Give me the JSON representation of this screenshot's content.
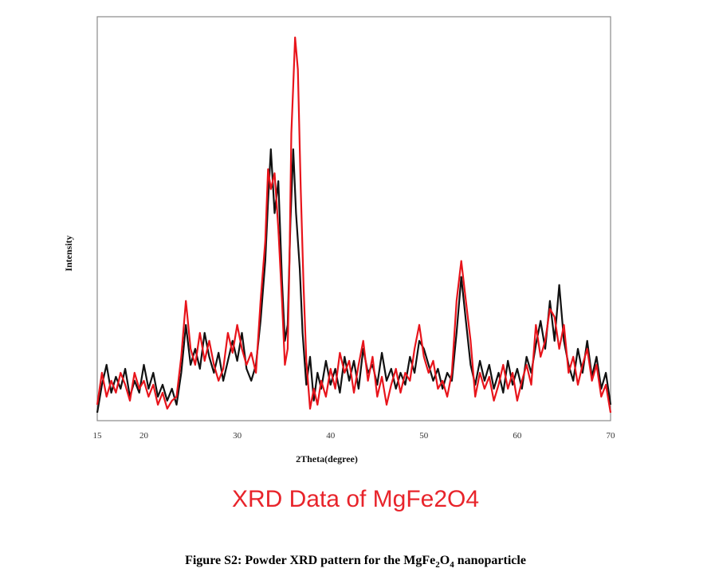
{
  "chart_data": {
    "type": "line",
    "title": "XRD Data of MgFe2O4",
    "xlabel": "2Theta(degree)",
    "ylabel": "Intensity",
    "xlim": [
      15,
      70
    ],
    "ylim": [
      0,
      100
    ],
    "xticks": [
      15,
      20,
      30,
      40,
      50,
      60,
      70
    ],
    "xtick_labels": [
      "15",
      "20",
      "30",
      "40",
      "50",
      "60",
      "70"
    ],
    "grid": false,
    "series": [
      {
        "color": "#111111",
        "points": [
          [
            15,
            2
          ],
          [
            15.5,
            9
          ],
          [
            16,
            14
          ],
          [
            16.5,
            7
          ],
          [
            17,
            11
          ],
          [
            17.5,
            8
          ],
          [
            18,
            13
          ],
          [
            18.5,
            6
          ],
          [
            19,
            10
          ],
          [
            19.5,
            7
          ],
          [
            20,
            14
          ],
          [
            20.5,
            8
          ],
          [
            21,
            12
          ],
          [
            21.5,
            6
          ],
          [
            22,
            9
          ],
          [
            22.5,
            5
          ],
          [
            23,
            8
          ],
          [
            23.5,
            4
          ],
          [
            24,
            12
          ],
          [
            24.5,
            24
          ],
          [
            25,
            14
          ],
          [
            25.5,
            18
          ],
          [
            26,
            13
          ],
          [
            26.5,
            22
          ],
          [
            27,
            16
          ],
          [
            27.5,
            12
          ],
          [
            28,
            17
          ],
          [
            28.5,
            10
          ],
          [
            29,
            15
          ],
          [
            29.5,
            20
          ],
          [
            30,
            15
          ],
          [
            30.5,
            22
          ],
          [
            31,
            13
          ],
          [
            31.5,
            10
          ],
          [
            32,
            14
          ],
          [
            32.5,
            25
          ],
          [
            33,
            40
          ],
          [
            33.3,
            55
          ],
          [
            33.6,
            68
          ],
          [
            34,
            52
          ],
          [
            34.4,
            60
          ],
          [
            34.8,
            35
          ],
          [
            35.1,
            20
          ],
          [
            35.4,
            24
          ],
          [
            35.7,
            50
          ],
          [
            36,
            68
          ],
          [
            36.3,
            52
          ],
          [
            36.7,
            38
          ],
          [
            37,
            22
          ],
          [
            37.4,
            9
          ],
          [
            37.8,
            16
          ],
          [
            38.2,
            5
          ],
          [
            38.6,
            12
          ],
          [
            39,
            8
          ],
          [
            39.5,
            15
          ],
          [
            40,
            9
          ],
          [
            40.5,
            13
          ],
          [
            41,
            7
          ],
          [
            41.5,
            16
          ],
          [
            42,
            10
          ],
          [
            42.5,
            15
          ],
          [
            43,
            8
          ],
          [
            43.5,
            18
          ],
          [
            44,
            12
          ],
          [
            44.5,
            14
          ],
          [
            45,
            9
          ],
          [
            45.5,
            17
          ],
          [
            46,
            10
          ],
          [
            46.5,
            13
          ],
          [
            47,
            8
          ],
          [
            47.5,
            12
          ],
          [
            48,
            9
          ],
          [
            48.5,
            16
          ],
          [
            49,
            12
          ],
          [
            49.5,
            20
          ],
          [
            50,
            18
          ],
          [
            50.5,
            14
          ],
          [
            51,
            10
          ],
          [
            51.5,
            13
          ],
          [
            52,
            8
          ],
          [
            52.5,
            12
          ],
          [
            53,
            10
          ],
          [
            53.5,
            22
          ],
          [
            54,
            36
          ],
          [
            54.5,
            25
          ],
          [
            55,
            14
          ],
          [
            55.5,
            9
          ],
          [
            56,
            15
          ],
          [
            56.5,
            10
          ],
          [
            57,
            14
          ],
          [
            57.5,
            8
          ],
          [
            58,
            12
          ],
          [
            58.5,
            7
          ],
          [
            59,
            15
          ],
          [
            59.5,
            9
          ],
          [
            60,
            13
          ],
          [
            60.5,
            8
          ],
          [
            61,
            16
          ],
          [
            61.5,
            12
          ],
          [
            62,
            19
          ],
          [
            62.5,
            25
          ],
          [
            63,
            18
          ],
          [
            63.5,
            30
          ],
          [
            64,
            20
          ],
          [
            64.5,
            34
          ],
          [
            65,
            20
          ],
          [
            65.5,
            14
          ],
          [
            66,
            10
          ],
          [
            66.5,
            18
          ],
          [
            67,
            12
          ],
          [
            67.5,
            20
          ],
          [
            68,
            11
          ],
          [
            68.5,
            16
          ],
          [
            69,
            8
          ],
          [
            69.5,
            12
          ],
          [
            70,
            4
          ]
        ]
      },
      {
        "color": "#e8141b",
        "points": [
          [
            15,
            4
          ],
          [
            15.5,
            12
          ],
          [
            16,
            6
          ],
          [
            16.5,
            10
          ],
          [
            17,
            7
          ],
          [
            17.5,
            12
          ],
          [
            18,
            9
          ],
          [
            18.5,
            5
          ],
          [
            19,
            12
          ],
          [
            19.5,
            8
          ],
          [
            20,
            10
          ],
          [
            20.5,
            6
          ],
          [
            21,
            9
          ],
          [
            21.5,
            4
          ],
          [
            22,
            7
          ],
          [
            22.5,
            3
          ],
          [
            23,
            5
          ],
          [
            23.5,
            6
          ],
          [
            24,
            16
          ],
          [
            24.5,
            30
          ],
          [
            25,
            18
          ],
          [
            25.5,
            14
          ],
          [
            26,
            22
          ],
          [
            26.5,
            15
          ],
          [
            27,
            20
          ],
          [
            27.5,
            14
          ],
          [
            28,
            10
          ],
          [
            28.5,
            13
          ],
          [
            29,
            22
          ],
          [
            29.5,
            17
          ],
          [
            30,
            24
          ],
          [
            30.5,
            18
          ],
          [
            31,
            14
          ],
          [
            31.5,
            17
          ],
          [
            32,
            12
          ],
          [
            32.5,
            30
          ],
          [
            33,
            45
          ],
          [
            33.3,
            63
          ],
          [
            33.6,
            58
          ],
          [
            34,
            62
          ],
          [
            34.4,
            48
          ],
          [
            34.8,
            30
          ],
          [
            35.1,
            14
          ],
          [
            35.4,
            18
          ],
          [
            35.6,
            40
          ],
          [
            35.8,
            72
          ],
          [
            36,
            84
          ],
          [
            36.2,
            96
          ],
          [
            36.5,
            88
          ],
          [
            36.8,
            58
          ],
          [
            37.1,
            34
          ],
          [
            37.4,
            15
          ],
          [
            37.8,
            3
          ],
          [
            38.2,
            8
          ],
          [
            38.6,
            4
          ],
          [
            39,
            10
          ],
          [
            39.5,
            6
          ],
          [
            40,
            13
          ],
          [
            40.5,
            8
          ],
          [
            41,
            17
          ],
          [
            41.5,
            12
          ],
          [
            42,
            15
          ],
          [
            42.5,
            7
          ],
          [
            43,
            14
          ],
          [
            43.5,
            20
          ],
          [
            44,
            10
          ],
          [
            44.5,
            16
          ],
          [
            45,
            6
          ],
          [
            45.5,
            11
          ],
          [
            46,
            4
          ],
          [
            46.5,
            9
          ],
          [
            47,
            13
          ],
          [
            47.5,
            7
          ],
          [
            48,
            12
          ],
          [
            48.5,
            10
          ],
          [
            49,
            18
          ],
          [
            49.5,
            24
          ],
          [
            50,
            16
          ],
          [
            50.5,
            12
          ],
          [
            51,
            15
          ],
          [
            51.5,
            8
          ],
          [
            52,
            10
          ],
          [
            52.5,
            6
          ],
          [
            53,
            12
          ],
          [
            53.5,
            30
          ],
          [
            54,
            40
          ],
          [
            54.5,
            30
          ],
          [
            55,
            20
          ],
          [
            55.5,
            6
          ],
          [
            56,
            12
          ],
          [
            56.5,
            8
          ],
          [
            57,
            11
          ],
          [
            57.5,
            5
          ],
          [
            58,
            9
          ],
          [
            58.5,
            14
          ],
          [
            59,
            8
          ],
          [
            59.5,
            12
          ],
          [
            60,
            5
          ],
          [
            60.5,
            10
          ],
          [
            61,
            14
          ],
          [
            61.5,
            9
          ],
          [
            62,
            24
          ],
          [
            62.5,
            16
          ],
          [
            63,
            20
          ],
          [
            63.5,
            28
          ],
          [
            64,
            26
          ],
          [
            64.5,
            18
          ],
          [
            65,
            24
          ],
          [
            65.5,
            12
          ],
          [
            66,
            16
          ],
          [
            66.5,
            9
          ],
          [
            67,
            14
          ],
          [
            67.5,
            18
          ],
          [
            68,
            10
          ],
          [
            68.5,
            14
          ],
          [
            69,
            6
          ],
          [
            69.5,
            9
          ],
          [
            70,
            2
          ]
        ]
      }
    ]
  },
  "caption": {
    "prefix": "Figure S2: Powder XRD pattern for the MgFe",
    "sub1": "2",
    "mid": "O",
    "sub2": "4",
    "suffix": " nanoparticle"
  }
}
